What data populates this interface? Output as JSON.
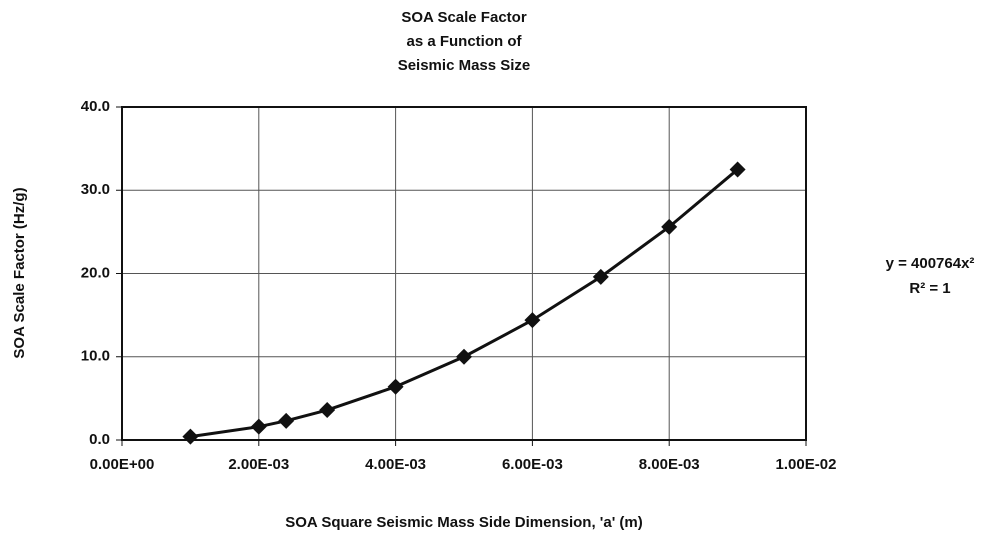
{
  "chart_data": {
    "type": "scatter",
    "title": [
      "SOA Scale Factor",
      "as a Function of",
      "Seismic Mass Size"
    ],
    "x_label": "SOA Square Seismic Mass Side Dimension, 'a' (m)",
    "y_label": "SOA Scale Factor (Hz/g)",
    "annotations": [
      "y = 400764x²",
      "R² = 1"
    ],
    "color": "#111111",
    "grid": true,
    "series": [
      {
        "name": "SOA Scale Factor",
        "x": [
          0.001,
          0.002,
          0.0024,
          0.003,
          0.004,
          0.005,
          0.006,
          0.007,
          0.008,
          0.009
        ],
        "values": [
          0.4,
          1.6,
          2.3,
          3.6,
          6.4,
          10.0,
          14.4,
          19.6,
          25.6,
          32.5
        ]
      }
    ],
    "xlim": [
      0,
      0.01
    ],
    "xticks": [
      {
        "value": 0,
        "label": "0.00E+00"
      },
      {
        "value": 0.002,
        "label": "2.00E-03"
      },
      {
        "value": 0.004,
        "label": "4.00E-03"
      },
      {
        "value": 0.006,
        "label": "6.00E-03"
      },
      {
        "value": 0.008,
        "label": "8.00E-03"
      },
      {
        "value": 0.01,
        "label": "1.00E-02"
      }
    ],
    "ylim": [
      0,
      40
    ],
    "yticks": [
      {
        "value": 0,
        "label": "0.0"
      },
      {
        "value": 10,
        "label": "10.0"
      },
      {
        "value": 20,
        "label": "20.0"
      },
      {
        "value": 30,
        "label": "30.0"
      },
      {
        "value": 40,
        "label": "40.0"
      }
    ]
  }
}
